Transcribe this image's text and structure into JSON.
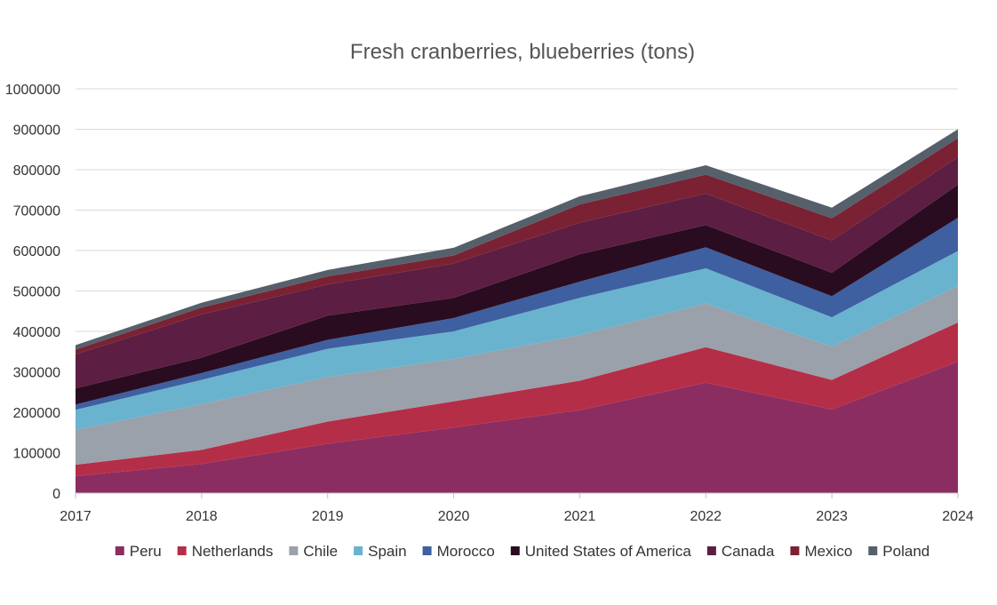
{
  "chart_data": {
    "type": "area",
    "stacked": true,
    "title": "Fresh cranberries, blueberries (tons)",
    "xlabel": "",
    "ylabel": "",
    "x": [
      "2017",
      "2018",
      "2019",
      "2020",
      "2021",
      "2022",
      "2023",
      "2024"
    ],
    "ylim": [
      0,
      1000000
    ],
    "yticks": [
      "0",
      "100000",
      "200000",
      "300000",
      "400000",
      "500000",
      "600000",
      "700000",
      "800000",
      "900000",
      "1000000"
    ],
    "grid": true,
    "legend_position": "bottom",
    "series": [
      {
        "name": "Peru",
        "color": "#8b2d60",
        "values": [
          42000,
          72000,
          122000,
          162000,
          205000,
          273000,
          207000,
          325000
        ]
      },
      {
        "name": "Netherlands",
        "color": "#b52e48",
        "values": [
          28000,
          35000,
          55000,
          65000,
          73000,
          88000,
          73000,
          97000
        ]
      },
      {
        "name": "Chile",
        "color": "#9aa1aa",
        "values": [
          86000,
          113000,
          110000,
          105000,
          113000,
          108000,
          82000,
          90000
        ]
      },
      {
        "name": "Spain",
        "color": "#6ab3cf",
        "values": [
          50000,
          60000,
          70000,
          68000,
          92000,
          87000,
          73000,
          87000
        ]
      },
      {
        "name": "Morocco",
        "color": "#3e5fa0",
        "values": [
          13000,
          17000,
          22000,
          33000,
          40000,
          52000,
          52000,
          82000
        ]
      },
      {
        "name": "United States of America",
        "color": "#2a0c20",
        "values": [
          40000,
          38000,
          60000,
          50000,
          68000,
          55000,
          58000,
          82000
        ]
      },
      {
        "name": "Canada",
        "color": "#5c1e42",
        "values": [
          84000,
          107000,
          77000,
          85000,
          78000,
          78000,
          80000,
          68000
        ]
      },
      {
        "name": "Mexico",
        "color": "#7a2233",
        "values": [
          12000,
          17000,
          20000,
          20000,
          45000,
          47000,
          55000,
          47000
        ]
      },
      {
        "name": "Poland",
        "color": "#55606a",
        "values": [
          11000,
          12000,
          16000,
          19000,
          20000,
          23000,
          26000,
          22000
        ]
      }
    ]
  }
}
